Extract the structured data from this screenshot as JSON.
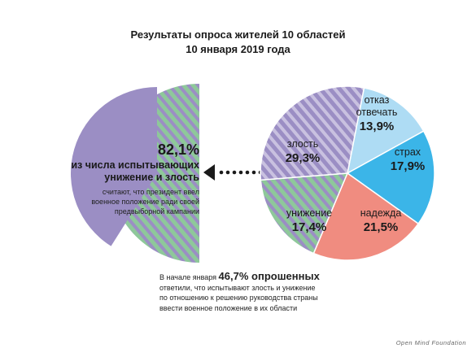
{
  "title_line1": "Результаты опроса жителей 10 областей",
  "title_line2": "10 января 2019 года",
  "colors": {
    "purple": "#9b8ec4",
    "green": "#8ec89a",
    "light_blue": "#aedcf4",
    "blue": "#3bb5e8",
    "salmon": "#f08c80"
  },
  "chart_data": [
    {
      "type": "pie",
      "slices": [
        {
          "label": "отказ отвечать",
          "value": 13.9,
          "value_text": "13,9%",
          "color": "#aedcf4",
          "pattern": "solid"
        },
        {
          "label": "страх",
          "value": 17.9,
          "value_text": "17,9%",
          "color": "#3bb5e8",
          "pattern": "solid"
        },
        {
          "label": "надежда",
          "value": 21.5,
          "value_text": "21,5%",
          "color": "#f08c80",
          "pattern": "solid"
        },
        {
          "label": "унижение",
          "value": 17.4,
          "value_text": "17,4%",
          "color": "#8ec89a",
          "pattern": "hatched"
        },
        {
          "label": "злость",
          "value": 29.3,
          "value_text": "29,3%",
          "color": "#9b8ec4",
          "pattern": "hatched"
        }
      ]
    },
    {
      "type": "pie",
      "highlighted_value": 82.1,
      "value_text": "82,1%",
      "label": "из числа испытывающих унижение и злость",
      "sublabel": "считают, что президент ввел военное положение ради своей предвыборной кампании"
    }
  ],
  "left_label_line1": "из числа испытывающих",
  "left_label_line2": "унижение и злость",
  "left_sub_line1": "считают, что президент ввел",
  "left_sub_line2": "военное положение ради своей",
  "left_sub_line3": "предвыборной кампании",
  "slice_names": {
    "refuse_line1": "отказ",
    "refuse_line2": "отвечать"
  },
  "note": {
    "prefix": "В начале января ",
    "highlight": "46,7% опрошенных",
    "line2": "ответили, что испытывают злость и унижение",
    "line3": "по отношению к решению руководства страны",
    "line4": "ввести военное положение в их области"
  },
  "footer": "Open Mind Foundation"
}
